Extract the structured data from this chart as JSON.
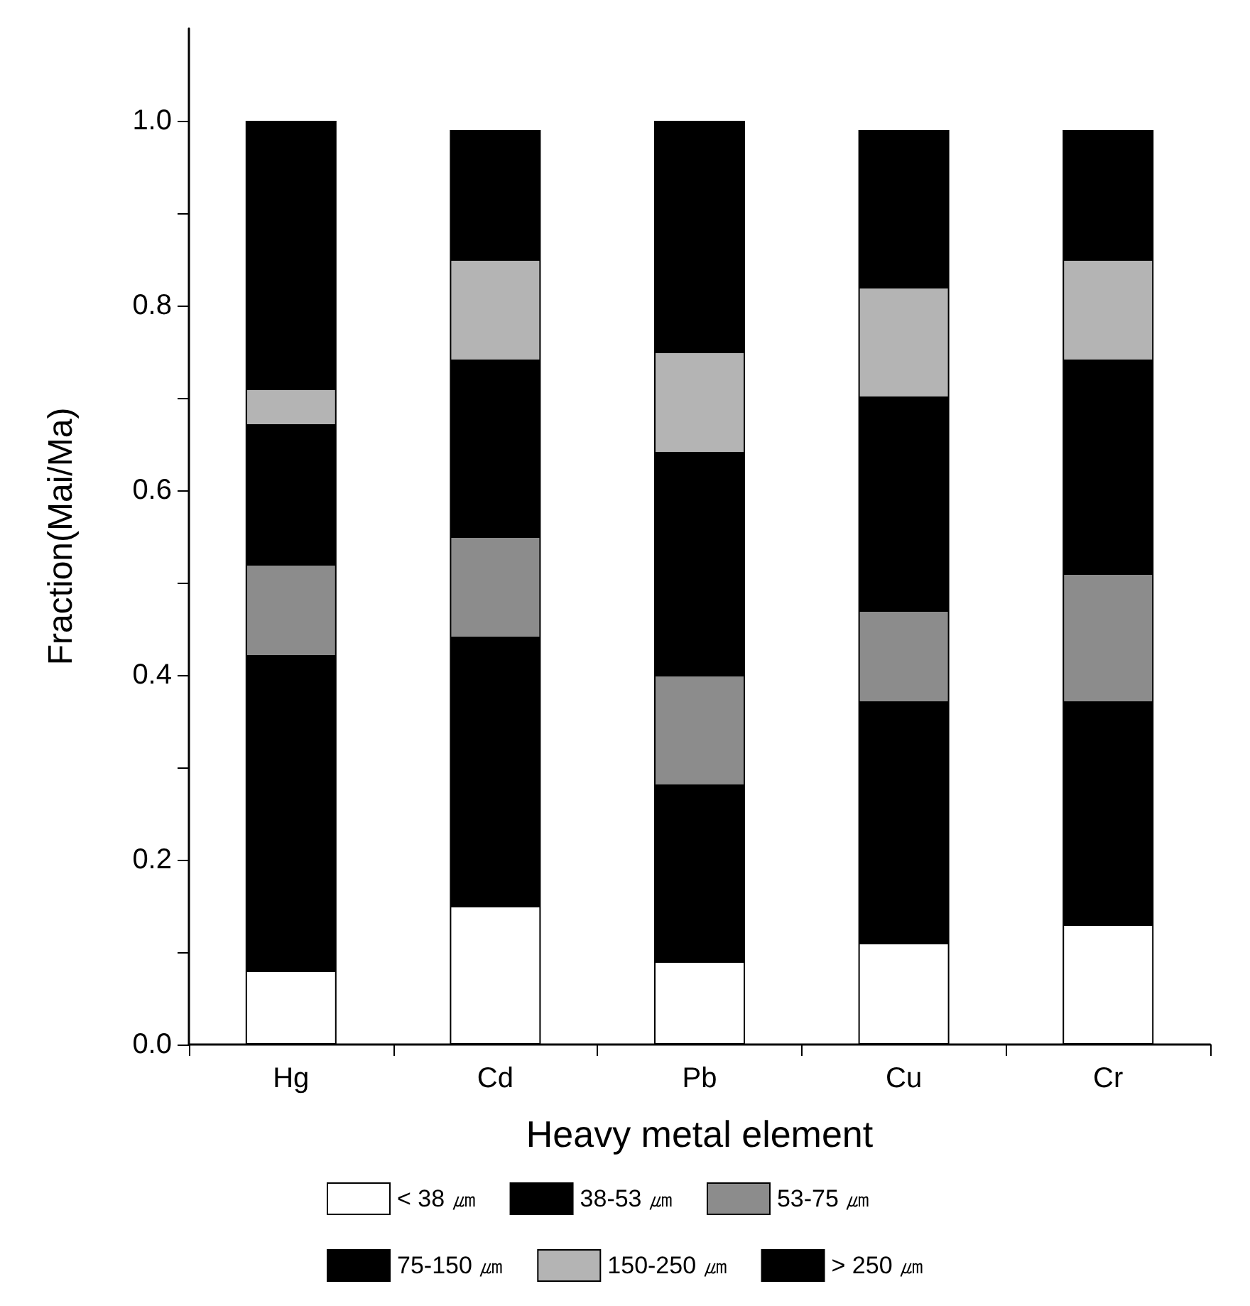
{
  "chart_data": {
    "type": "bar",
    "stacked": true,
    "xlabel": "Heavy metal element",
    "ylabel": "Fraction(Mai/Ma)",
    "categories": [
      "Hg",
      "Cd",
      "Pb",
      "Cu",
      "Cr"
    ],
    "series": [
      {
        "name": "< 38 ㎛",
        "color": "#ffffff",
        "values": [
          0.08,
          0.15,
          0.09,
          0.11,
          0.13
        ]
      },
      {
        "name": "38-53 ㎛",
        "color": "#000000",
        "values": [
          0.34,
          0.29,
          0.19,
          0.26,
          0.24
        ]
      },
      {
        "name": "53-75 ㎛",
        "color": "#8c8c8c",
        "values": [
          0.1,
          0.11,
          0.12,
          0.1,
          0.14
        ]
      },
      {
        "name": "75-150 ㎛",
        "color": "#000000",
        "values": [
          0.15,
          0.19,
          0.24,
          0.23,
          0.23
        ]
      },
      {
        "name": "150-250 ㎛",
        "color": "#b4b4b4",
        "values": [
          0.04,
          0.11,
          0.11,
          0.12,
          0.11
        ]
      },
      {
        "name": "> 250 ㎛",
        "color": "#000000",
        "values": [
          0.29,
          0.14,
          0.25,
          0.17,
          0.14
        ]
      }
    ],
    "ylim": [
      0,
      1.1
    ],
    "yticks": [
      {
        "value": 0,
        "label": "0.0"
      },
      {
        "value": 0.1,
        "label": null
      },
      0.2,
      {
        "value": 0.3,
        "label": null
      },
      0.4,
      {
        "value": 0.5,
        "label": null
      },
      0.6,
      {
        "value": 0.7,
        "label": null
      },
      0.8,
      {
        "value": 0.9,
        "label": null
      },
      {
        "value": 1,
        "label": "1.0"
      }
    ],
    "grid": false,
    "legend": "bottom"
  }
}
